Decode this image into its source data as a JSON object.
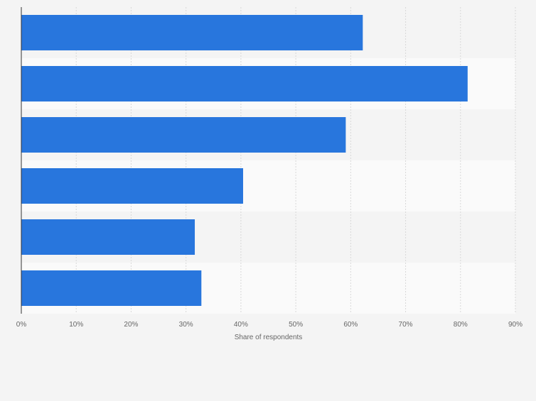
{
  "chart_data": {
    "type": "bar",
    "orientation": "horizontal",
    "categories": [
      "",
      "",
      "",
      "",
      "",
      ""
    ],
    "values": [
      62.2,
      81.3,
      59.1,
      40.4,
      31.6,
      32.8
    ],
    "xlabel": "Share of respondents",
    "ylabel": "",
    "xlim": [
      0,
      90
    ],
    "ticks": [
      0,
      10,
      20,
      30,
      40,
      50,
      60,
      70,
      80,
      90
    ],
    "tick_labels": [
      "0%",
      "10%",
      "20%",
      "30%",
      "40%",
      "50%",
      "60%",
      "70%",
      "80%",
      "90%"
    ],
    "grid": true,
    "bar_color": "#2876dd",
    "band_colors": [
      "#f4f4f4",
      "#fafafa"
    ],
    "grid_color": "#d8d8d8",
    "axis_color": "#333333",
    "text_color": "#666666"
  }
}
